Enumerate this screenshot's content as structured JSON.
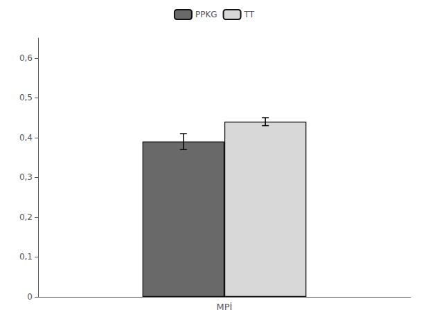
{
  "chart_data": {
    "type": "bar",
    "categories": [
      "MPİ"
    ],
    "series": [
      {
        "name": "PPKG",
        "color": "#696969",
        "values": [
          0.39
        ],
        "errors": [
          0.02
        ]
      },
      {
        "name": "TT",
        "color": "#d8d8d8",
        "values": [
          0.44
        ],
        "errors": [
          0.01
        ]
      }
    ],
    "ylim": [
      0,
      0.65
    ],
    "yticks": [
      0,
      {
        "value": 0.1,
        "label": "0,1"
      },
      {
        "value": 0.2,
        "label": "0,2"
      },
      {
        "value": 0.3,
        "label": "0,3"
      },
      {
        "value": 0.4,
        "label": "0,4"
      },
      {
        "value": 0.5,
        "label": "0,5"
      },
      {
        "value": 0.6,
        "label": "0,6"
      }
    ],
    "grid": false,
    "legend": "top"
  }
}
